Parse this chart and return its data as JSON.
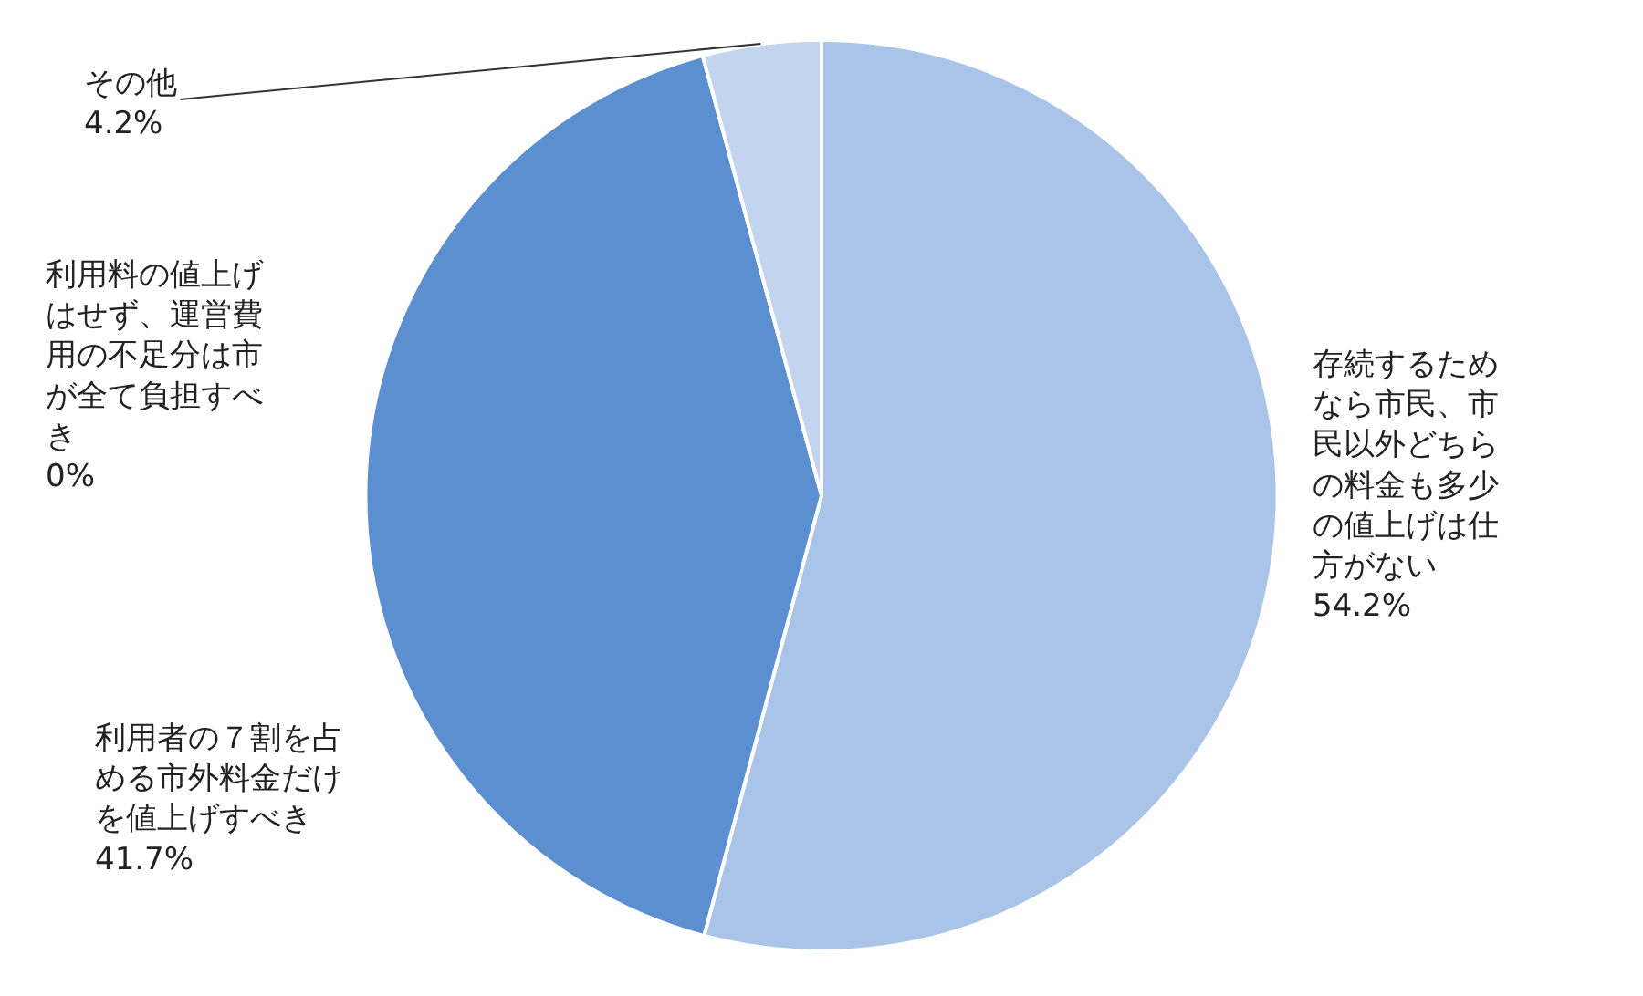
{
  "chart_data": {
    "type": "pie",
    "categories": [
      "存続するためなら市民、市民以外どちらの料金も多少の値上げは仕方がない",
      "利用者の７割を占める市外料金だけを値上げすべき",
      "利用料の値上げはせず、運営費用の不足分は市が全て負担すべき",
      "その他"
    ],
    "values": [
      54.2,
      41.7,
      0,
      4.2
    ],
    "value_labels": [
      "54.2%",
      "41.7%",
      "0%",
      "4.2%"
    ],
    "colors": [
      "#a9c4e8",
      "#5b8fd0",
      "#7fa6dc",
      "#c3d5ee"
    ],
    "legend": false
  }
}
